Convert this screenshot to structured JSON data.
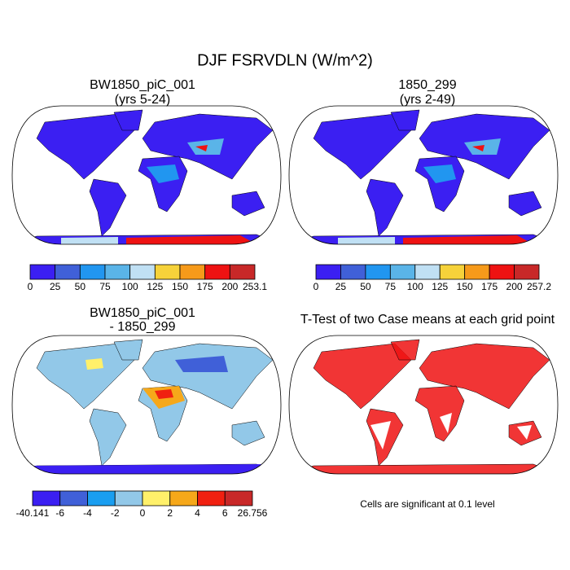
{
  "title": "DJF FSRVDLN (W/m^2)",
  "panels": [
    {
      "title": "BW1850_piC_001",
      "subtitle": "(yrs 5-24)",
      "colorbar": {
        "colors": [
          "#3b1ff2",
          "#4060d8",
          "#2196f0",
          "#5ab4e8",
          "#c0e0f4",
          "#f6d23a",
          "#f69a1a",
          "#ee1212",
          "#c82828"
        ],
        "labels": [
          0,
          25,
          50,
          75,
          100,
          125,
          150,
          175,
          200,
          253.1
        ]
      }
    },
    {
      "title": "1850_299",
      "subtitle": "(yrs 2-49)",
      "colorbar": {
        "colors": [
          "#3b1ff2",
          "#4060d8",
          "#2196f0",
          "#5ab4e8",
          "#c0e0f4",
          "#f6d23a",
          "#f69a1a",
          "#ee1212",
          "#c82828"
        ],
        "labels": [
          0,
          25,
          50,
          75,
          100,
          125,
          150,
          175,
          200,
          257.2
        ]
      }
    },
    {
      "title": "BW1850_piC_001",
      "subtitle": "- 1850_299",
      "colorbar": {
        "colors": [
          "#3b1ff2",
          "#4060d8",
          "#1a9ef0",
          "#92c8e8",
          "#fff06a",
          "#f6a81a",
          "#f02010",
          "#c82828"
        ],
        "labels": [
          -40.141,
          -6,
          -4,
          -2,
          0,
          2,
          4,
          6,
          26.756
        ]
      }
    },
    {
      "title": "T-Test of two Case means at each grid point",
      "note": "Cells are significant at 0.1 level"
    }
  ]
}
